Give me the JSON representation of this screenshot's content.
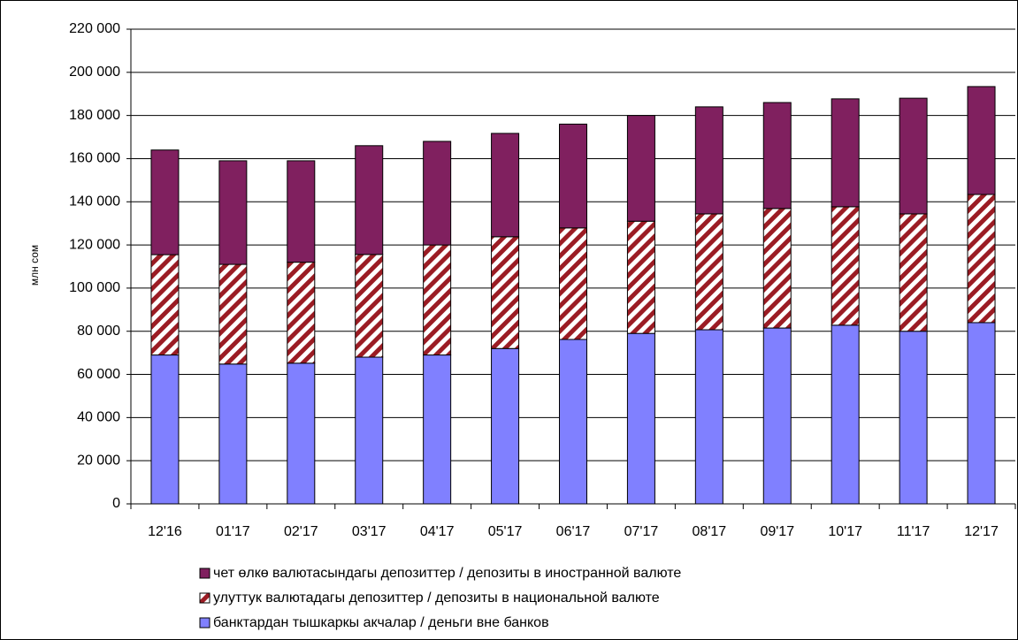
{
  "chart_data": {
    "type": "stacked_bar",
    "ylabel": "млн сом",
    "categories": [
      "12'16",
      "01'17",
      "02'17",
      "03'17",
      "04'17",
      "05'17",
      "06'17",
      "07'17",
      "08'17",
      "09'17",
      "10'17",
      "11'17",
      "12'17"
    ],
    "series": [
      {
        "name": "банктардан тышкаркы акчалар / деньги вне банков",
        "color": "#8080ff",
        "values": [
          69000,
          64800,
          65200,
          68000,
          69000,
          72000,
          76200,
          79000,
          80700,
          81500,
          82800,
          80000,
          84000
        ]
      },
      {
        "name": "улуттук валютадагы депозиттер / депозиты в национальной валюте",
        "color": "#9b1c24",
        "pattern": "hatch",
        "values": [
          46500,
          46200,
          46800,
          47600,
          51000,
          51800,
          51700,
          52000,
          53700,
          55400,
          54900,
          54400,
          59400
        ]
      },
      {
        "name": "чет өлкө валютасындагы депозиттер / депозиты в иностранной валюте",
        "color": "#80205f",
        "values": [
          48500,
          48000,
          47000,
          50400,
          48000,
          47900,
          48100,
          49000,
          49600,
          49100,
          50000,
          53600,
          50000
        ]
      }
    ],
    "ylim": [
      0,
      220000
    ],
    "yticks": [
      0,
      {
        "value": 20000,
        "label": "20 000"
      },
      {
        "value": 40000,
        "label": "40 000"
      },
      {
        "value": 60000,
        "label": "60 000"
      },
      {
        "value": 80000,
        "label": "80 000"
      },
      {
        "value": 100000,
        "label": "100 000"
      },
      {
        "value": 120000,
        "label": "120 000"
      },
      {
        "value": 140000,
        "label": "140 000"
      },
      {
        "value": 160000,
        "label": "160 000"
      },
      {
        "value": 180000,
        "label": "180 000"
      },
      {
        "value": 200000,
        "label": "200 000"
      },
      {
        "value": 220000,
        "label": "220 000"
      }
    ],
    "grid": true,
    "legend": "bottom"
  }
}
